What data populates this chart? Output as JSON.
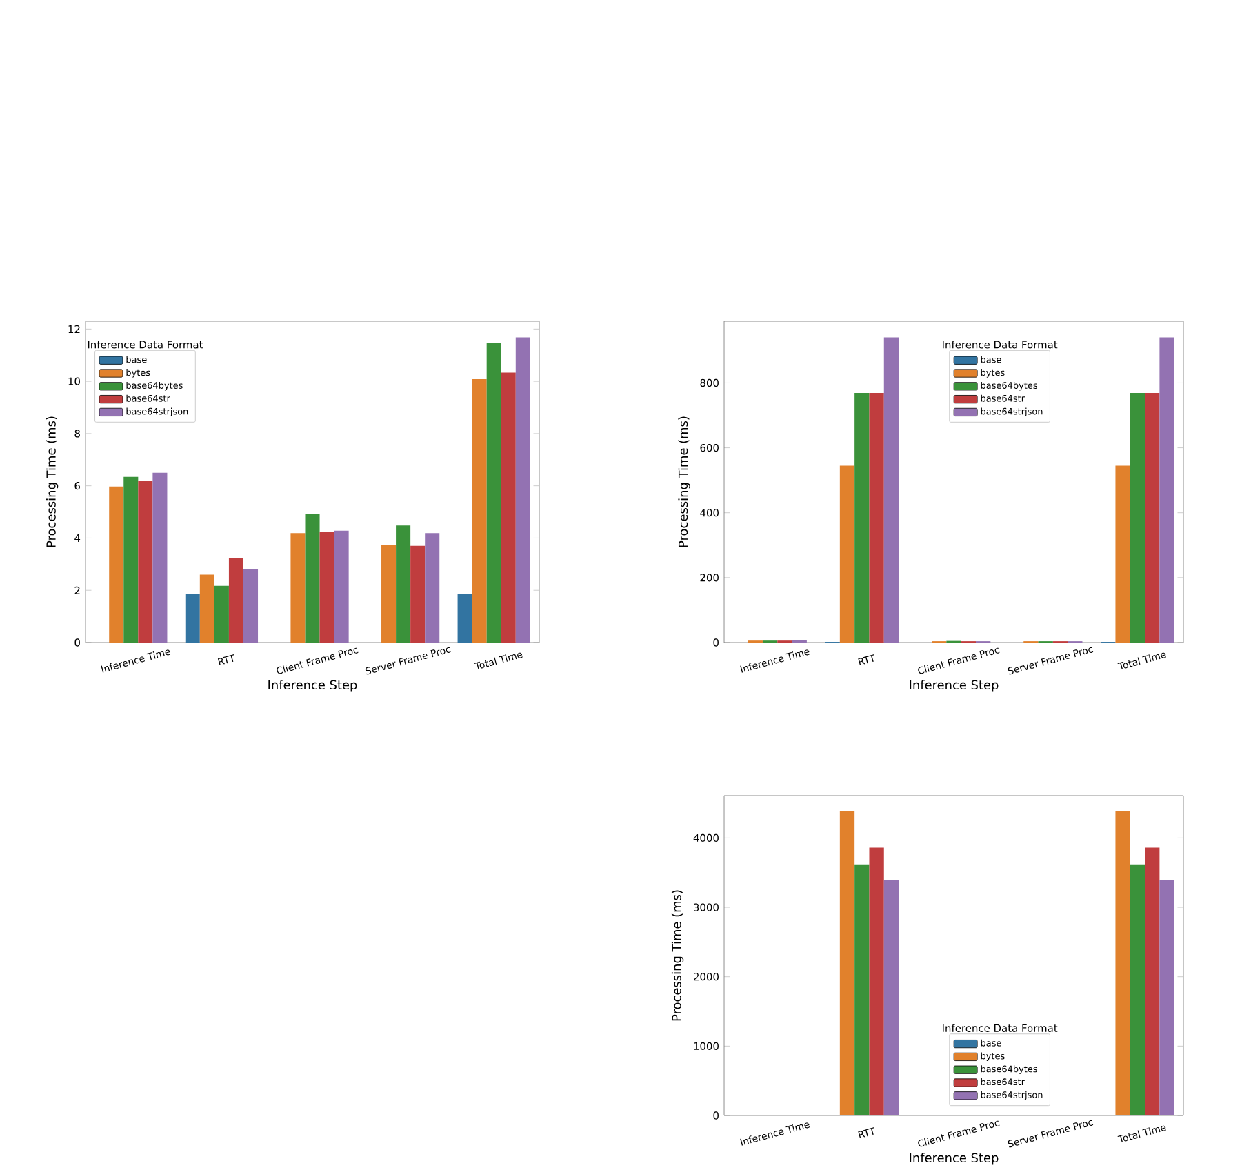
{
  "chart_data": [
    {
      "type": "bar",
      "legend_title": "Inference Data Format",
      "xlabel": "Inference Step",
      "ylabel": "Processing Time (ms)",
      "categories": [
        "Inference Time",
        "RTT",
        "Client Frame Proc",
        "Server Frame Proc",
        "Total Time"
      ],
      "ylim": [
        0,
        12.3
      ],
      "yticks": [
        0,
        2,
        4,
        6,
        8,
        10,
        12
      ],
      "legend": "top left",
      "series": [
        {
          "name": "base",
          "color": "#3274a1",
          "values": [
            0,
            1.87,
            0,
            0,
            1.87
          ]
        },
        {
          "name": "bytes",
          "color": "#e1812c",
          "values": [
            5.97,
            2.6,
            4.19,
            3.75,
            10.08
          ]
        },
        {
          "name": "base64bytes",
          "color": "#3a923a",
          "values": [
            6.34,
            2.17,
            4.92,
            4.48,
            11.47
          ]
        },
        {
          "name": "base64str",
          "color": "#c03d3e",
          "values": [
            6.2,
            3.22,
            4.25,
            3.7,
            10.33
          ]
        },
        {
          "name": "base64strjson",
          "color": "#9372b2",
          "values": [
            6.5,
            2.8,
            4.28,
            4.19,
            11.68
          ]
        }
      ]
    },
    {
      "type": "bar",
      "legend_title": "Inference Data Format",
      "xlabel": "Inference Step",
      "ylabel": "Processing Time (ms)",
      "categories": [
        "Inference Time",
        "RTT",
        "Client Frame Proc",
        "Server Frame Proc",
        "Total Time"
      ],
      "ylim": [
        0,
        990
      ],
      "yticks": [
        0,
        200,
        400,
        600,
        800
      ],
      "legend": "top",
      "series": [
        {
          "name": "base",
          "color": "#3274a1",
          "values": [
            0,
            2,
            0,
            0,
            2
          ]
        },
        {
          "name": "bytes",
          "color": "#e1812c",
          "values": [
            6,
            545,
            4,
            4,
            545
          ]
        },
        {
          "name": "base64bytes",
          "color": "#3a923a",
          "values": [
            6,
            769,
            5,
            4,
            769
          ]
        },
        {
          "name": "base64str",
          "color": "#c03d3e",
          "values": [
            6,
            769,
            4,
            4,
            769
          ]
        },
        {
          "name": "base64strjson",
          "color": "#9372b2",
          "values": [
            7,
            940,
            4,
            4,
            940
          ]
        }
      ]
    },
    {
      "type": "bar",
      "legend_title": "Inference Data Format",
      "xlabel": "Inference Step",
      "ylabel": "Processing Time (ms)",
      "categories": [
        "Inference Time",
        "RTT",
        "Client Frame Proc",
        "Server Frame Proc",
        "Total Time"
      ],
      "ylim": [
        0,
        4610
      ],
      "yticks": [
        0,
        1000,
        2000,
        3000,
        4000
      ],
      "legend": "bottom",
      "series": [
        {
          "name": "base",
          "color": "#3274a1",
          "values": [
            0,
            0,
            0,
            0,
            0
          ]
        },
        {
          "name": "bytes",
          "color": "#e1812c",
          "values": [
            0,
            4390,
            0,
            0,
            4390
          ]
        },
        {
          "name": "base64bytes",
          "color": "#3a923a",
          "values": [
            0,
            3620,
            0,
            0,
            3620
          ]
        },
        {
          "name": "base64str",
          "color": "#c03d3e",
          "values": [
            0,
            3860,
            0,
            0,
            3860
          ]
        },
        {
          "name": "base64strjson",
          "color": "#9372b2",
          "values": [
            0,
            3390,
            0,
            0,
            3390
          ]
        }
      ]
    }
  ]
}
